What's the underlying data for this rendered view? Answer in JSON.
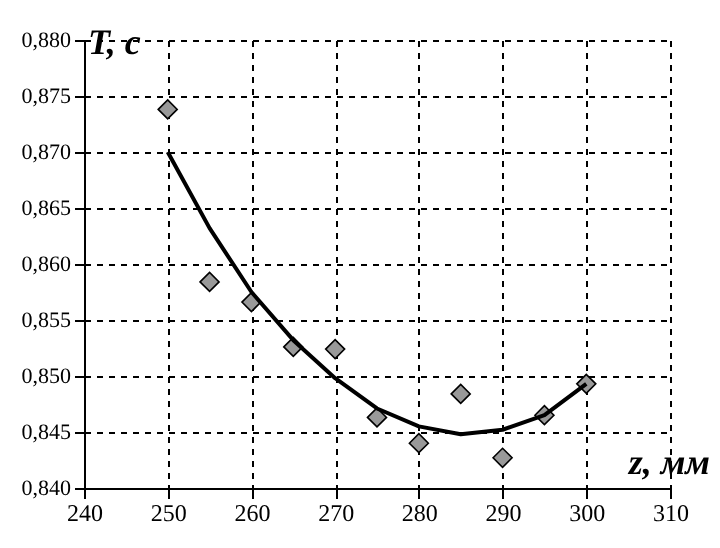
{
  "chart_data": {
    "type": "scatter",
    "xlabel": "z, мм",
    "ylabel": "T, с",
    "xlim": [
      240,
      310
    ],
    "xticks": [
      240,
      250,
      260,
      270,
      280,
      290,
      300,
      310
    ],
    "ylim": [
      0.84,
      0.88
    ],
    "yticks": [
      {
        "value": 0.84,
        "label": "0,840"
      },
      {
        "value": 0.845,
        "label": "0,845"
      },
      {
        "value": 0.85,
        "label": "0,850"
      },
      {
        "value": 0.855,
        "label": "0,855"
      },
      {
        "value": 0.86,
        "label": "0,860"
      },
      {
        "value": 0.865,
        "label": "0,865"
      },
      {
        "value": 0.87,
        "label": "0,870"
      },
      {
        "value": 0.875,
        "label": "0,875"
      },
      {
        "value": 0.88,
        "label": "0,880"
      }
    ],
    "grid": true,
    "legend": false,
    "series": [
      {
        "type": "scatter",
        "marker": "diamond",
        "color": "#999999",
        "x": [
          250,
          255,
          260,
          265,
          270,
          275,
          280,
          285,
          290,
          295,
          300
        ],
        "values": [
          0.8738,
          0.8584,
          0.8566,
          0.8526,
          0.8524,
          0.8463,
          0.844,
          0.8484,
          0.8427,
          0.8465,
          0.8493
        ]
      },
      {
        "type": "line",
        "marker": "none",
        "line_style": "solid",
        "color": "#000000",
        "x": [
          250,
          255,
          260,
          265,
          270,
          275,
          280,
          285,
          290,
          295,
          300
        ],
        "values": [
          0.87,
          0.8632,
          0.8575,
          0.8532,
          0.8498,
          0.8471,
          0.8455,
          0.8448,
          0.8452,
          0.8465,
          0.8493
        ]
      }
    ]
  }
}
